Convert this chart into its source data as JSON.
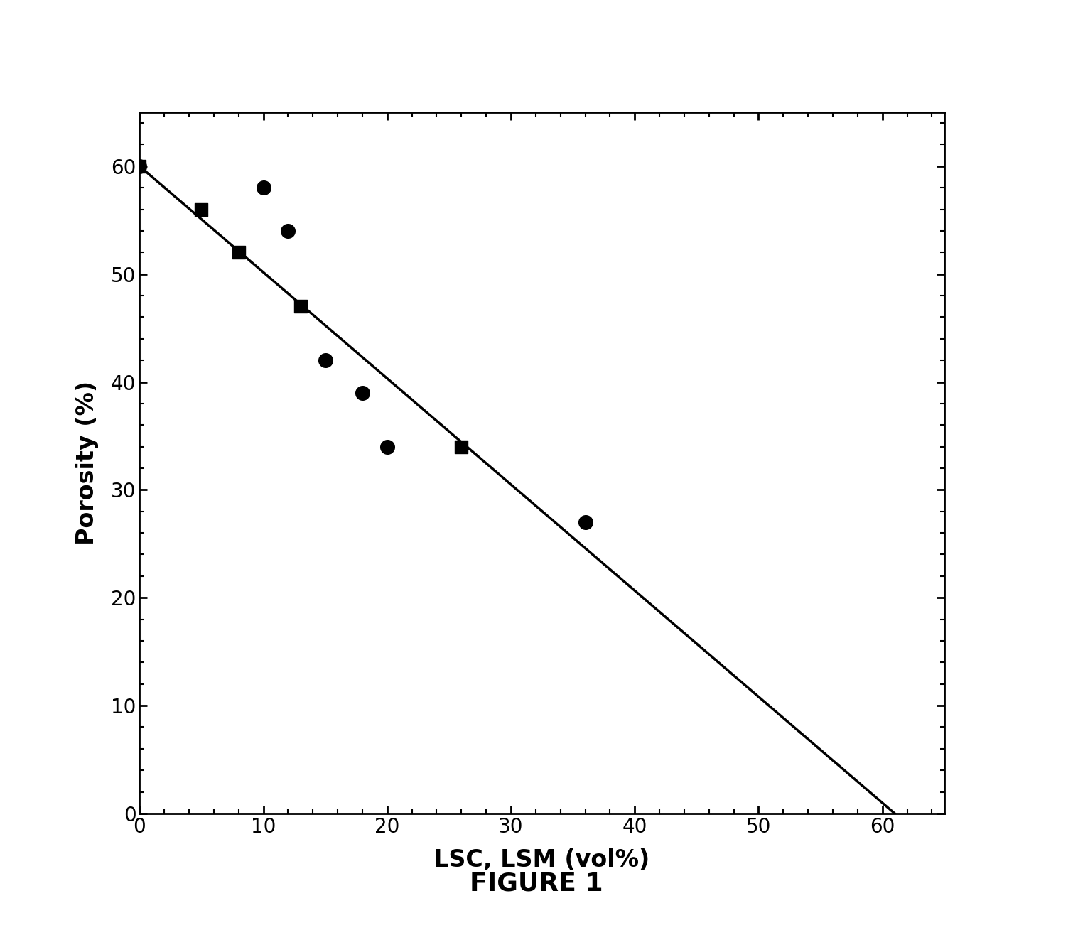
{
  "title": "FIGURE 1",
  "xlabel": "LSC, LSM (vol%)",
  "ylabel": "Porosity (%)",
  "xlim": [
    0,
    65
  ],
  "ylim": [
    0,
    65
  ],
  "xticks": [
    0,
    10,
    20,
    30,
    40,
    50,
    60
  ],
  "yticks": [
    0,
    10,
    20,
    30,
    40,
    50,
    60
  ],
  "line_x": [
    0,
    61.0
  ],
  "line_y": [
    60.0,
    0.0
  ],
  "circles_x": [
    0,
    10,
    12,
    15,
    18,
    20,
    36
  ],
  "circles_y": [
    60,
    58,
    54,
    42,
    39,
    34,
    27
  ],
  "squares_x": [
    0,
    5,
    8,
    13,
    26
  ],
  "squares_y": [
    60,
    56,
    52,
    47,
    34
  ],
  "marker_color": "#000000",
  "line_color": "#000000",
  "line_width": 2.5,
  "marker_size_circle": 200,
  "marker_size_square": 160,
  "background_color": "#ffffff",
  "title_fontsize": 26,
  "xlabel_fontsize": 24,
  "ylabel_fontsize": 24,
  "tick_fontsize": 20
}
